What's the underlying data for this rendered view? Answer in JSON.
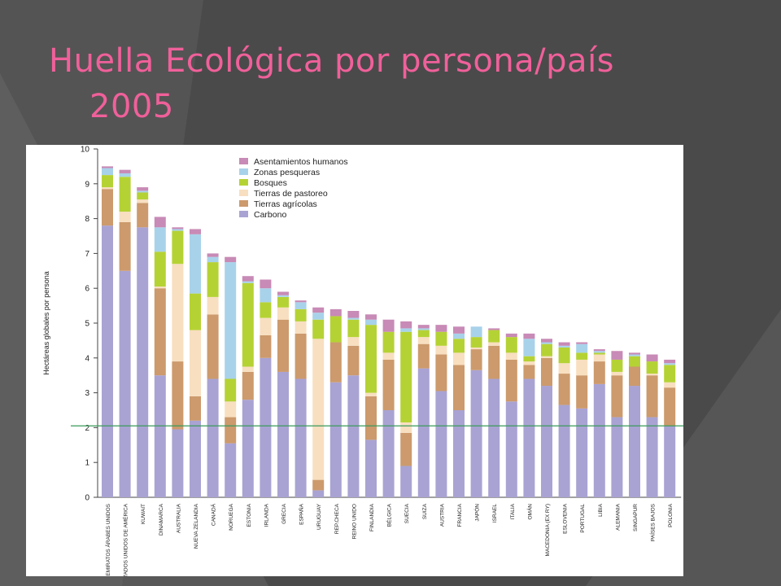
{
  "slide": {
    "title_line1": "Huella Ecológica por persona/país",
    "title_line2": "2005",
    "title_color": "#f0609a",
    "background_color": "#4a4a4a"
  },
  "chart_data": {
    "type": "bar",
    "stacked": true,
    "ylabel": "Hectáreas globales por persona",
    "ylim": [
      0,
      10
    ],
    "yticks": [
      0,
      1,
      2,
      3,
      4,
      5,
      6,
      7,
      8,
      9,
      10
    ],
    "grid": false,
    "legend_position": "top-center",
    "reference_line": {
      "y": 2.05,
      "color": "#3a9a5a"
    },
    "categories": [
      "EMIRATOS ÁRABES UNIDOS",
      "ESTADOS UNIDOS DE AMÉRICA",
      "KUWAIT",
      "DINAMARCA",
      "AUSTRALIA",
      "NUEVA ZELANDIA",
      "CANADÁ",
      "NORUEGA",
      "ESTONIA",
      "IRLANDA",
      "GRECIA",
      "ESPAÑA",
      "URUGUAY",
      "REP.CHECA",
      "REINO UNIDO",
      "FINLANDIA",
      "BÉLGICA",
      "SUECIA",
      "SUIZA",
      "AUSTRIA",
      "FRANCIA",
      "JAPÓN",
      "ISRAEL",
      "ITALIA",
      "OMÁN",
      "MACEDONIA (EX RY)",
      "ESLOVENIA",
      "PORTUGAL",
      "LIBIA",
      "ALEMANIA",
      "SINGAPUR",
      "PAÍSES BAJOS",
      "POLONIA"
    ],
    "series": [
      {
        "name": "Carbono",
        "color": "#a9a3d3",
        "values": [
          7.8,
          6.5,
          7.75,
          3.5,
          1.95,
          2.2,
          3.4,
          1.55,
          2.8,
          4.0,
          3.6,
          3.4,
          0.2,
          3.3,
          3.5,
          1.65,
          2.5,
          0.9,
          3.7,
          3.05,
          2.5,
          3.65,
          3.4,
          2.75,
          3.4,
          3.2,
          2.65,
          2.55,
          3.25,
          2.3,
          3.2,
          2.3,
          2.05
        ]
      },
      {
        "name": "Tierras agrícolas",
        "color": "#cc9a6c",
        "values": [
          1.05,
          1.4,
          0.7,
          2.5,
          1.95,
          0.7,
          1.85,
          0.75,
          0.8,
          0.65,
          1.5,
          1.3,
          0.3,
          1.15,
          0.85,
          1.25,
          1.45,
          0.95,
          0.7,
          1.05,
          1.3,
          0.6,
          0.95,
          1.2,
          0.4,
          0.8,
          0.9,
          0.95,
          0.65,
          1.2,
          0.55,
          1.2,
          1.1
        ]
      },
      {
        "name": "Tierras de pastoreo",
        "color": "#f8dfc0",
        "values": [
          0.05,
          0.3,
          0.1,
          0.05,
          2.8,
          1.9,
          0.5,
          0.45,
          0.15,
          0.5,
          0.35,
          0.35,
          4.05,
          0.0,
          0.25,
          0.1,
          0.2,
          0.3,
          0.2,
          0.25,
          0.35,
          0.05,
          0.1,
          0.2,
          0.1,
          0.05,
          0.3,
          0.45,
          0.2,
          0.1,
          0.0,
          0.05,
          0.15
        ]
      },
      {
        "name": "Bosques",
        "color": "#b5d234",
        "values": [
          0.35,
          1.0,
          0.2,
          1.0,
          0.95,
          1.05,
          1.0,
          0.65,
          2.4,
          0.45,
          0.3,
          0.35,
          0.55,
          0.75,
          0.5,
          1.95,
          0.6,
          2.6,
          0.2,
          0.4,
          0.4,
          0.3,
          0.35,
          0.45,
          0.15,
          0.35,
          0.45,
          0.2,
          0.05,
          0.35,
          0.3,
          0.35,
          0.5
        ]
      },
      {
        "name": "Zonas pesqueras",
        "color": "#a8d2ea",
        "values": [
          0.2,
          0.1,
          0.05,
          0.7,
          0.05,
          1.7,
          0.15,
          3.35,
          0.05,
          0.4,
          0.05,
          0.2,
          0.2,
          0.0,
          0.05,
          0.15,
          0.0,
          0.1,
          0.05,
          0.0,
          0.15,
          0.3,
          0.0,
          0.0,
          0.5,
          0.05,
          0.05,
          0.25,
          0.05,
          0.0,
          0.05,
          0.0,
          0.05
        ]
      },
      {
        "name": "Asentamientos humanos",
        "color": "#c88ab6",
        "values": [
          0.05,
          0.1,
          0.1,
          0.3,
          0.05,
          0.15,
          0.1,
          0.15,
          0.15,
          0.25,
          0.1,
          0.05,
          0.15,
          0.2,
          0.2,
          0.15,
          0.35,
          0.2,
          0.1,
          0.2,
          0.2,
          0.0,
          0.05,
          0.1,
          0.15,
          0.1,
          0.1,
          0.05,
          0.05,
          0.25,
          0.05,
          0.2,
          0.1
        ]
      }
    ]
  }
}
